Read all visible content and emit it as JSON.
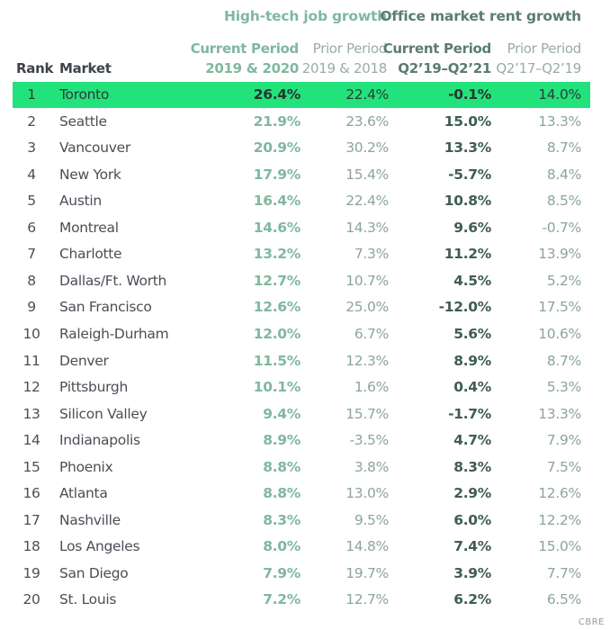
{
  "chart_data": {
    "type": "table",
    "groups": {
      "job_growth": "High-tech job growth",
      "rent_growth": "Office market rent growth"
    },
    "headers": {
      "rank": "Rank",
      "market": "Market",
      "job_current": [
        "Current Period",
        "2019 & 2020"
      ],
      "job_prior": [
        "Prior Period",
        "2019 & 2018"
      ],
      "rent_current": [
        "Current Period",
        "Q2’19–Q2’21"
      ],
      "rent_prior": [
        "Prior Period",
        "Q2’17–Q2’19"
      ]
    },
    "highlight_color": "#22e37b",
    "highlight_rank": "1",
    "rows": [
      {
        "rank": "1",
        "market": "Toronto",
        "job_current": "26.4%",
        "job_prior": "22.4%",
        "rent_current": "-0.1%",
        "rent_prior": "14.0%"
      },
      {
        "rank": "2",
        "market": "Seattle",
        "job_current": "21.9%",
        "job_prior": "23.6%",
        "rent_current": "15.0%",
        "rent_prior": "13.3%"
      },
      {
        "rank": "3",
        "market": "Vancouver",
        "job_current": "20.9%",
        "job_prior": "30.2%",
        "rent_current": "13.3%",
        "rent_prior": "8.7%"
      },
      {
        "rank": "4",
        "market": "New York",
        "job_current": "17.9%",
        "job_prior": "15.4%",
        "rent_current": "-5.7%",
        "rent_prior": "8.4%"
      },
      {
        "rank": "5",
        "market": "Austin",
        "job_current": "16.4%",
        "job_prior": "22.4%",
        "rent_current": "10.8%",
        "rent_prior": "8.5%"
      },
      {
        "rank": "6",
        "market": "Montreal",
        "job_current": "14.6%",
        "job_prior": "14.3%",
        "rent_current": "9.6%",
        "rent_prior": "-0.7%"
      },
      {
        "rank": "7",
        "market": "Charlotte",
        "job_current": "13.2%",
        "job_prior": "7.3%",
        "rent_current": "11.2%",
        "rent_prior": "13.9%"
      },
      {
        "rank": "8",
        "market": "Dallas/Ft. Worth",
        "job_current": "12.7%",
        "job_prior": "10.7%",
        "rent_current": "4.5%",
        "rent_prior": "5.2%"
      },
      {
        "rank": "9",
        "market": "San Francisco",
        "job_current": "12.6%",
        "job_prior": "25.0%",
        "rent_current": "-12.0%",
        "rent_prior": "17.5%"
      },
      {
        "rank": "10",
        "market": "Raleigh-Durham",
        "job_current": "12.0%",
        "job_prior": "6.7%",
        "rent_current": "5.6%",
        "rent_prior": "10.6%"
      },
      {
        "rank": "11",
        "market": "Denver",
        "job_current": "11.5%",
        "job_prior": "12.3%",
        "rent_current": "8.9%",
        "rent_prior": "8.7%"
      },
      {
        "rank": "12",
        "market": "Pittsburgh",
        "job_current": "10.1%",
        "job_prior": "1.6%",
        "rent_current": "0.4%",
        "rent_prior": "5.3%"
      },
      {
        "rank": "13",
        "market": "Silicon Valley",
        "job_current": "9.4%",
        "job_prior": "15.7%",
        "rent_current": "-1.7%",
        "rent_prior": "13.3%"
      },
      {
        "rank": "14",
        "market": "Indianapolis",
        "job_current": "8.9%",
        "job_prior": "-3.5%",
        "rent_current": "4.7%",
        "rent_prior": "7.9%"
      },
      {
        "rank": "15",
        "market": "Phoenix",
        "job_current": "8.8%",
        "job_prior": "3.8%",
        "rent_current": "8.3%",
        "rent_prior": "7.5%"
      },
      {
        "rank": "16",
        "market": "Atlanta",
        "job_current": "8.8%",
        "job_prior": "13.0%",
        "rent_current": "2.9%",
        "rent_prior": "12.6%"
      },
      {
        "rank": "17",
        "market": "Nashville",
        "job_current": "8.3%",
        "job_prior": "9.5%",
        "rent_current": "6.0%",
        "rent_prior": "12.2%"
      },
      {
        "rank": "18",
        "market": "Los Angeles",
        "job_current": "8.0%",
        "job_prior": "14.8%",
        "rent_current": "7.4%",
        "rent_prior": "15.0%"
      },
      {
        "rank": "19",
        "market": "San Diego",
        "job_current": "7.9%",
        "job_prior": "19.7%",
        "rent_current": "3.9%",
        "rent_prior": "7.7%"
      },
      {
        "rank": "20",
        "market": "St. Louis",
        "job_current": "7.2%",
        "job_prior": "12.7%",
        "rent_current": "6.2%",
        "rent_prior": "6.5%"
      }
    ]
  },
  "watermark": "CBRE"
}
